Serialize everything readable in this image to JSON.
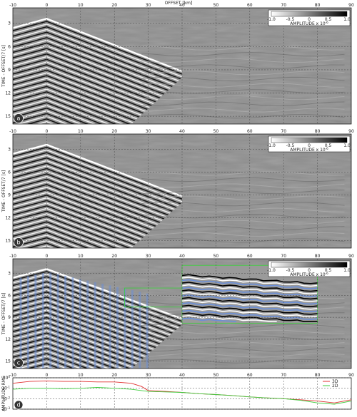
{
  "figure": {
    "top_axis_label": "OFFSET [km]",
    "colorbar": {
      "label_prefix": "AMPLITUDE x 10",
      "label_exp": "-6",
      "ticks": [
        "-1.0",
        "-0.5",
        "0",
        "0.5",
        "1.0"
      ]
    }
  },
  "chart_data": [
    {
      "type": "heatmap",
      "panel_letter": "a",
      "ylabel": "TIME - OFFSET/7 [s]",
      "x_ticks": [
        -10,
        0,
        10,
        20,
        30,
        40,
        50,
        60,
        70,
        80,
        90
      ],
      "y_ticks": [
        3,
        6,
        9,
        12,
        15
      ],
      "xlim": [
        -10,
        90
      ],
      "ylim": [
        1,
        16
      ],
      "grid": true,
      "colorbar": true
    },
    {
      "type": "heatmap",
      "panel_letter": "b",
      "ylabel": "TIME - OFFSET/7 [s]",
      "x_ticks": [
        -10,
        0,
        10,
        20,
        30,
        40,
        50,
        60,
        70,
        80,
        90
      ],
      "y_ticks": [
        3,
        6,
        9,
        12,
        15
      ],
      "xlim": [
        -10,
        90
      ],
      "ylim": [
        1,
        16
      ],
      "grid": true,
      "colorbar": true
    },
    {
      "type": "heatmap",
      "panel_letter": "c",
      "ylabel": "TIME - OFFSET/7 [s]",
      "x_ticks": [
        -10,
        0,
        10,
        20,
        30,
        40,
        50,
        60,
        70,
        80,
        90
      ],
      "y_ticks": [
        3,
        6,
        9,
        12,
        15
      ],
      "xlim": [
        -10,
        90
      ],
      "ylim": [
        1,
        16
      ],
      "grid": true,
      "colorbar": true,
      "highlight_box_x": [
        23,
        80
      ],
      "inset_x": [
        40,
        80
      ]
    },
    {
      "type": "line",
      "panel_letter": "d",
      "ylabel": "AMPLITUDE RMS",
      "y_scale": "log",
      "ylim": [
        0.001,
        1
      ],
      "y_ticks": [
        "10",
        "10",
        "10",
        "10"
      ],
      "y_tick_exps": [
        "0",
        "-1",
        "-2",
        "-3"
      ],
      "x_ticks": [
        -10,
        0,
        10,
        20,
        30,
        40,
        50,
        60,
        70,
        80,
        90
      ],
      "xlim": [
        -10,
        90
      ],
      "legend_position": "top-right",
      "series": [
        {
          "name": "3D",
          "color": "#e03030",
          "x": [
            -10,
            -5,
            0,
            5,
            10,
            15,
            20,
            25,
            28,
            30,
            35,
            40,
            45,
            50,
            55,
            60,
            65,
            70,
            75,
            80,
            85,
            90
          ],
          "y": [
            0.3,
            0.45,
            0.5,
            0.45,
            0.45,
            0.4,
            0.4,
            0.3,
            0.15,
            0.06,
            0.05,
            0.04,
            0.03,
            0.025,
            0.02,
            0.015,
            0.012,
            0.01,
            0.008,
            0.006,
            0.004,
            0.008
          ]
        },
        {
          "name": "2D",
          "color": "#3ccc3c",
          "x": [
            -10,
            -5,
            0,
            5,
            10,
            15,
            20,
            25,
            28,
            30,
            35,
            40,
            45,
            50,
            55,
            60,
            65,
            70,
            75,
            80,
            85,
            90
          ],
          "y": [
            0.08,
            0.1,
            0.1,
            0.09,
            0.1,
            0.12,
            0.1,
            0.08,
            0.06,
            0.05,
            0.045,
            0.04,
            0.03,
            0.025,
            0.02,
            0.015,
            0.012,
            0.01,
            0.007,
            0.004,
            0.003,
            0.006
          ]
        }
      ]
    }
  ]
}
